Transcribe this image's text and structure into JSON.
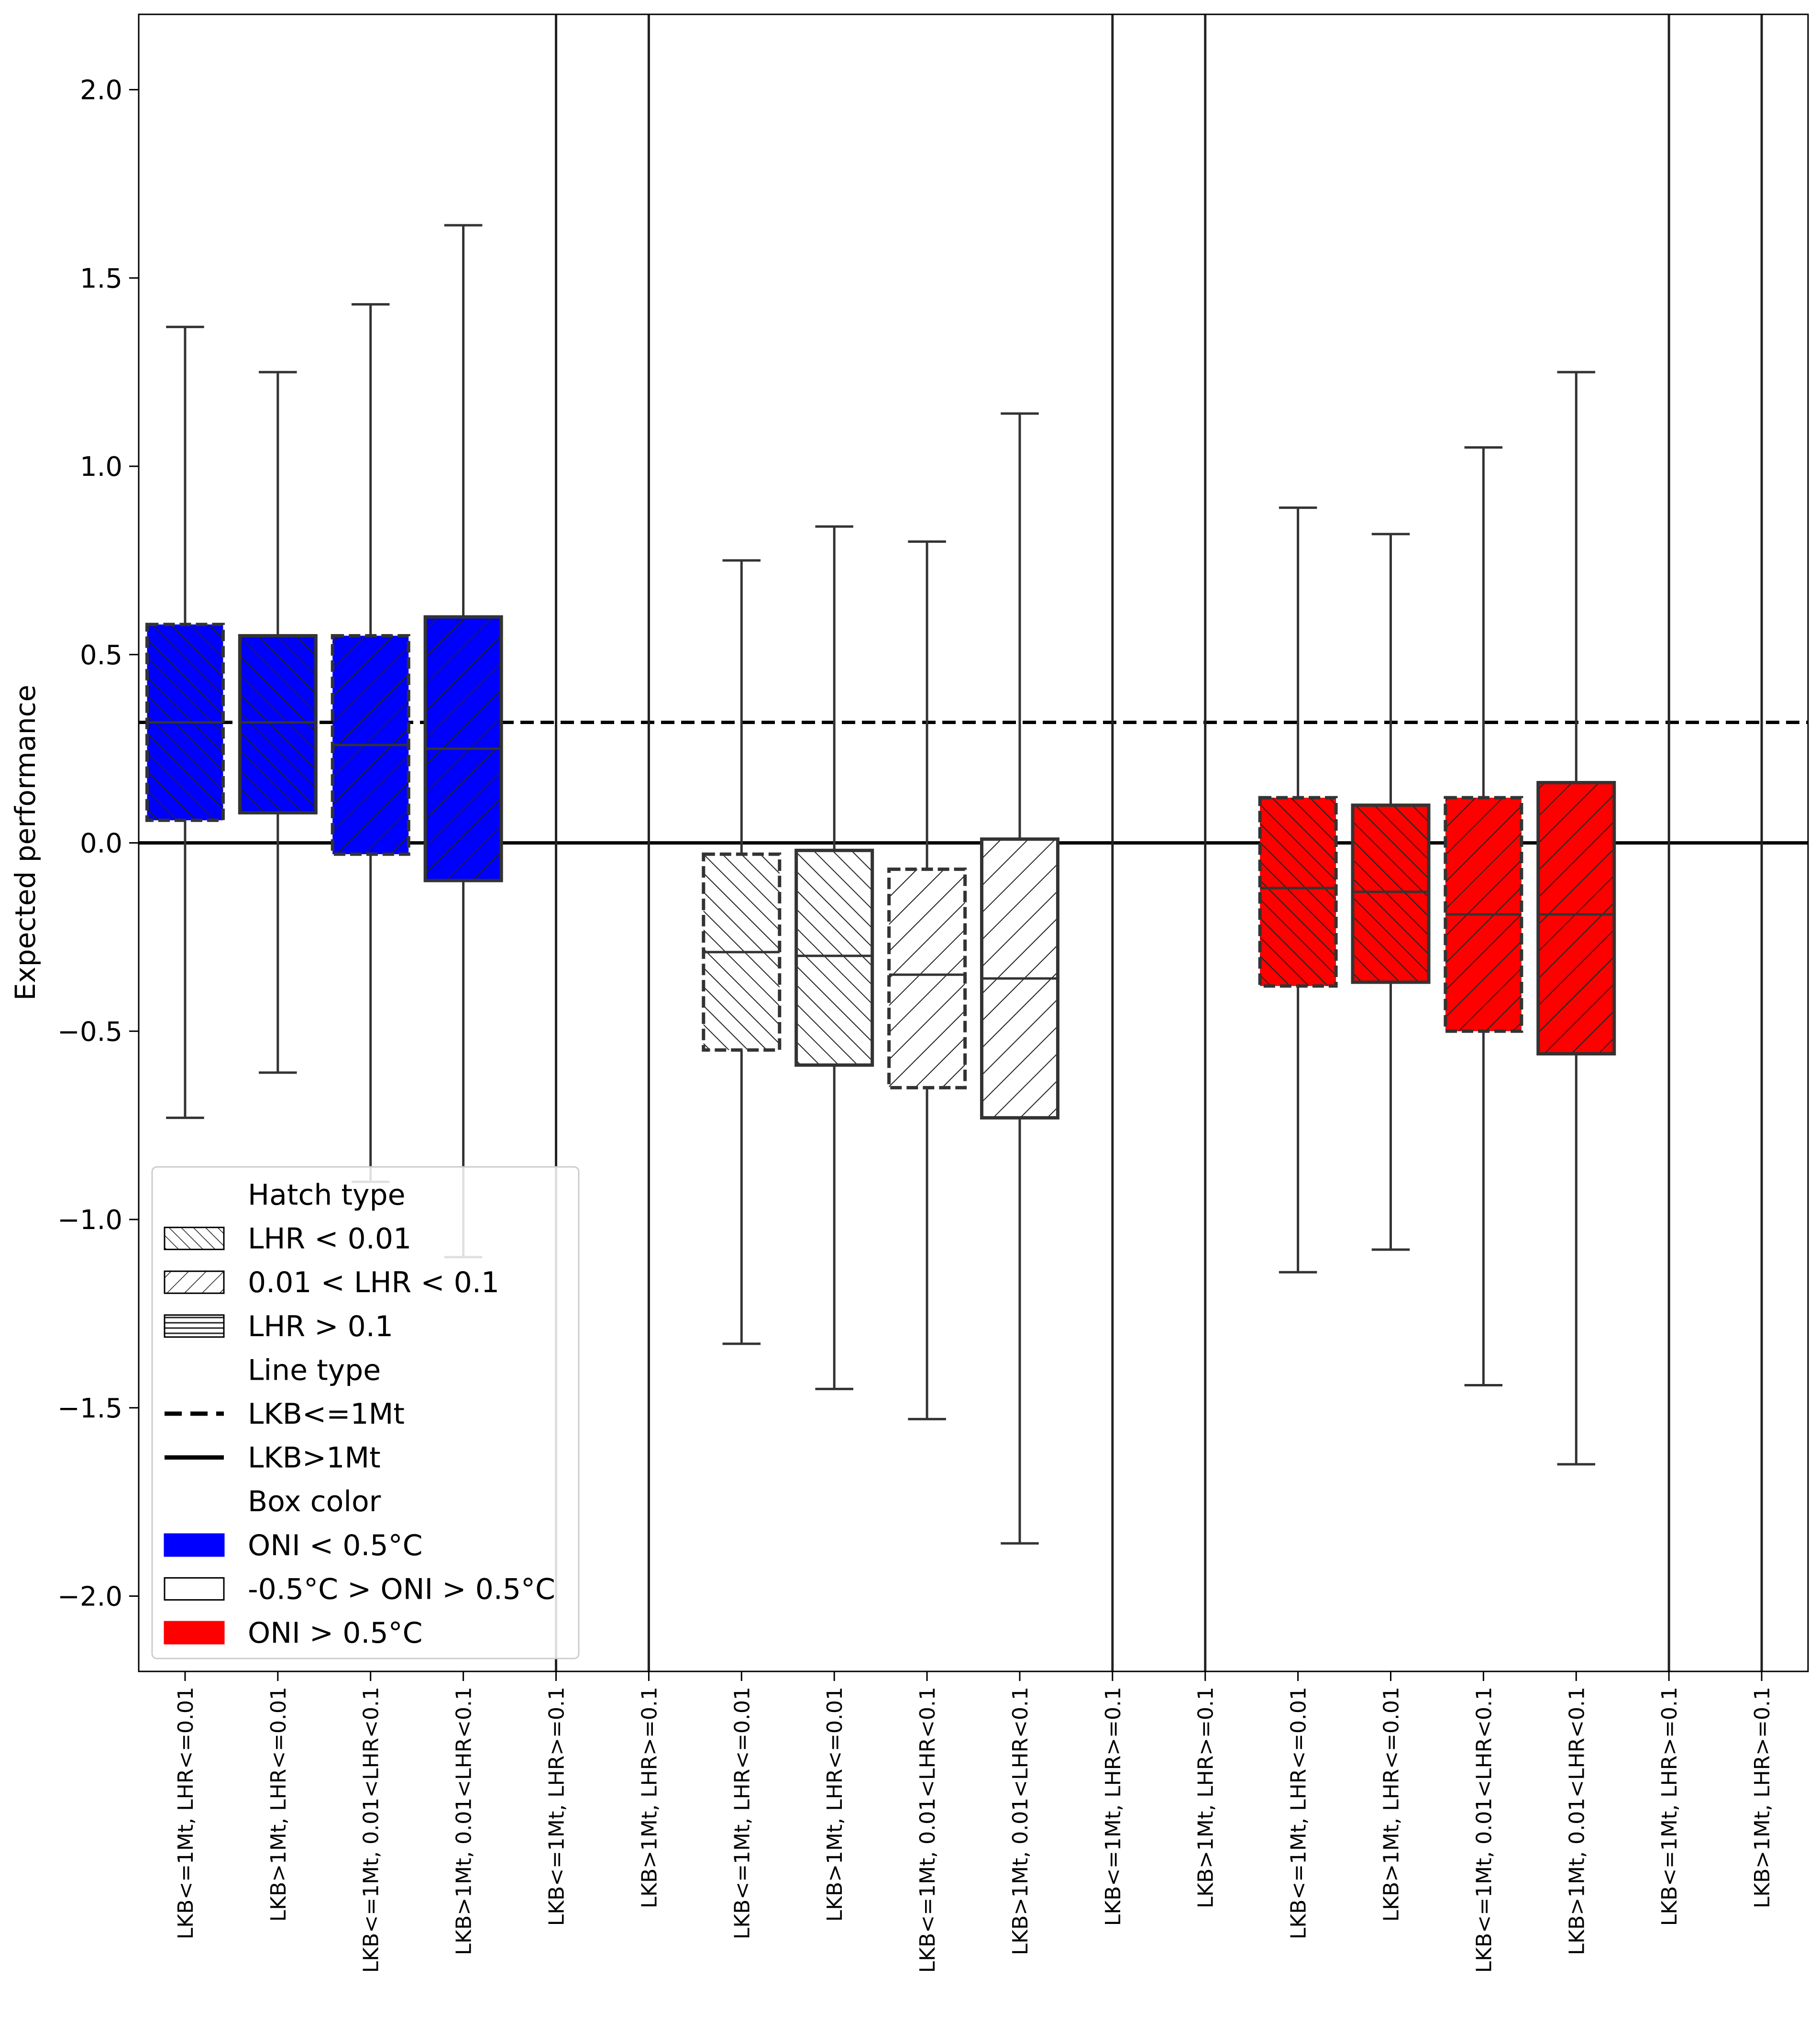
{
  "chart_data": {
    "type": "box",
    "title": "",
    "xlabel": "",
    "ylabel": "Expected performance",
    "ylim": [
      -2.2,
      2.2
    ],
    "yticks": [
      -2.0,
      -1.5,
      -1.0,
      -0.5,
      0.0,
      0.5,
      1.0,
      1.5,
      2.0
    ],
    "ytick_labels": [
      "−2.0",
      "−1.5",
      "−1.0",
      "−0.5",
      "0.0",
      "0.5",
      "1.0",
      "1.5",
      "2.0"
    ],
    "reference_lines": [
      {
        "style": "dashed",
        "y": 0.32
      },
      {
        "style": "solid",
        "y": 0.0
      }
    ],
    "categories": [
      "LKB<=1Mt, LHR<=0.01",
      "LKB>1Mt, LHR<=0.01",
      "LKB<=1Mt, 0.01<LHR<0.1",
      "LKB>1Mt, 0.01<LHR<0.1",
      "LKB<=1Mt, LHR>=0.1",
      "LKB>1Mt, LHR>=0.1",
      "LKB<=1Mt, LHR<=0.01",
      "LKB>1Mt, LHR<=0.01",
      "LKB<=1Mt, 0.01<LHR<0.1",
      "LKB>1Mt, 0.01<LHR<0.1",
      "LKB<=1Mt, LHR>=0.1",
      "LKB>1Mt, LHR>=0.1",
      "LKB<=1Mt, LHR<=0.01",
      "LKB>1Mt, LHR<=0.01",
      "LKB<=1Mt, 0.01<LHR<0.1",
      "LKB>1Mt, 0.01<LHR<0.1",
      "LKB<=1Mt, LHR>=0.1",
      "LKB>1Mt, LHR>=0.1"
    ],
    "boxes": [
      {
        "index": 0,
        "color": "#0000ff",
        "hatch": "///",
        "line": "dashed",
        "whisker_low": -0.73,
        "q1": 0.06,
        "median": 0.32,
        "q3": 0.58,
        "whisker_high": 1.37
      },
      {
        "index": 1,
        "color": "#0000ff",
        "hatch": "///",
        "line": "solid",
        "whisker_low": -0.61,
        "q1": 0.08,
        "median": 0.32,
        "q3": 0.55,
        "whisker_high": 1.25
      },
      {
        "index": 2,
        "color": "#0000ff",
        "hatch": "\\\\",
        "line": "dashed",
        "whisker_low": -0.9,
        "q1": -0.03,
        "median": 0.26,
        "q3": 0.55,
        "whisker_high": 1.43
      },
      {
        "index": 3,
        "color": "#0000ff",
        "hatch": "\\\\",
        "line": "solid",
        "whisker_low": -1.1,
        "q1": -0.1,
        "median": 0.25,
        "q3": 0.6,
        "whisker_high": 1.64
      },
      {
        "index": 4,
        "color": "#0000ff",
        "hatch": "---",
        "line": "dashed",
        "whisker_low": 0,
        "q1": 0,
        "median": 0,
        "q3": 0,
        "whisker_high": 0,
        "empty": true
      },
      {
        "index": 5,
        "color": "#0000ff",
        "hatch": "---",
        "line": "solid",
        "whisker_low": 0,
        "q1": 0,
        "median": 0,
        "q3": 0,
        "whisker_high": 0,
        "empty": true
      },
      {
        "index": 6,
        "color": "#ffffff",
        "hatch": "///",
        "line": "dashed",
        "whisker_low": -1.33,
        "q1": -0.55,
        "median": -0.29,
        "q3": -0.03,
        "whisker_high": 0.75
      },
      {
        "index": 7,
        "color": "#ffffff",
        "hatch": "///",
        "line": "solid",
        "whisker_low": -1.45,
        "q1": -0.59,
        "median": -0.3,
        "q3": -0.02,
        "whisker_high": 0.84
      },
      {
        "index": 8,
        "color": "#ffffff",
        "hatch": "\\\\",
        "line": "dashed",
        "whisker_low": -1.53,
        "q1": -0.65,
        "median": -0.35,
        "q3": -0.07,
        "whisker_high": 0.8
      },
      {
        "index": 9,
        "color": "#ffffff",
        "hatch": "\\\\",
        "line": "solid",
        "whisker_low": -1.86,
        "q1": -0.73,
        "median": -0.36,
        "q3": 0.01,
        "whisker_high": 1.14
      },
      {
        "index": 10,
        "color": "#ffffff",
        "hatch": "---",
        "line": "dashed",
        "whisker_low": 0,
        "q1": 0,
        "median": 0,
        "q3": 0,
        "whisker_high": 0,
        "empty": true
      },
      {
        "index": 11,
        "color": "#ffffff",
        "hatch": "---",
        "line": "solid",
        "whisker_low": 0,
        "q1": 0,
        "median": 0,
        "q3": 0,
        "whisker_high": 0,
        "empty": true
      },
      {
        "index": 12,
        "color": "#ff0000",
        "hatch": "///",
        "line": "dashed",
        "whisker_low": -1.14,
        "q1": -0.38,
        "median": -0.12,
        "q3": 0.12,
        "whisker_high": 0.89
      },
      {
        "index": 13,
        "color": "#ff0000",
        "hatch": "///",
        "line": "solid",
        "whisker_low": -1.08,
        "q1": -0.37,
        "median": -0.13,
        "q3": 0.1,
        "whisker_high": 0.82
      },
      {
        "index": 14,
        "color": "#ff0000",
        "hatch": "\\\\",
        "line": "dashed",
        "whisker_low": -1.44,
        "q1": -0.5,
        "median": -0.19,
        "q3": 0.12,
        "whisker_high": 1.05
      },
      {
        "index": 15,
        "color": "#ff0000",
        "hatch": "\\\\",
        "line": "solid",
        "whisker_low": -1.65,
        "q1": -0.56,
        "median": -0.19,
        "q3": 0.16,
        "whisker_high": 1.25
      },
      {
        "index": 16,
        "color": "#ff0000",
        "hatch": "---",
        "line": "dashed",
        "whisker_low": 0,
        "q1": 0,
        "median": 0,
        "q3": 0,
        "whisker_high": 0,
        "empty": true
      },
      {
        "index": 17,
        "color": "#ff0000",
        "hatch": "---",
        "line": "solid",
        "whisker_low": 0,
        "q1": 0,
        "median": 0,
        "q3": 0,
        "whisker_high": 0,
        "empty": true
      }
    ],
    "legend": {
      "placement": "lower-left",
      "entries": [
        {
          "kind": "header",
          "label": "Hatch type"
        },
        {
          "kind": "hatch",
          "hatch": "///",
          "label": "LHR < 0.01"
        },
        {
          "kind": "hatch",
          "hatch": "\\\\",
          "label": "0.01 < LHR < 0.1"
        },
        {
          "kind": "hatch",
          "hatch": "---",
          "label": "LHR > 0.1"
        },
        {
          "kind": "header",
          "label": "Line type"
        },
        {
          "kind": "line",
          "line": "dashed",
          "label": "LKB<=1Mt"
        },
        {
          "kind": "line",
          "line": "solid",
          "label": "LKB>1Mt"
        },
        {
          "kind": "header",
          "label": "Box color"
        },
        {
          "kind": "color",
          "color": "#0000ff",
          "label": "ONI < 0.5°C"
        },
        {
          "kind": "color",
          "color": "#ffffff",
          "label": "-0.5°C > ONI > 0.5°C"
        },
        {
          "kind": "color",
          "color": "#ff0000",
          "label": "ONI > 0.5°C"
        }
      ]
    },
    "grid": false
  }
}
